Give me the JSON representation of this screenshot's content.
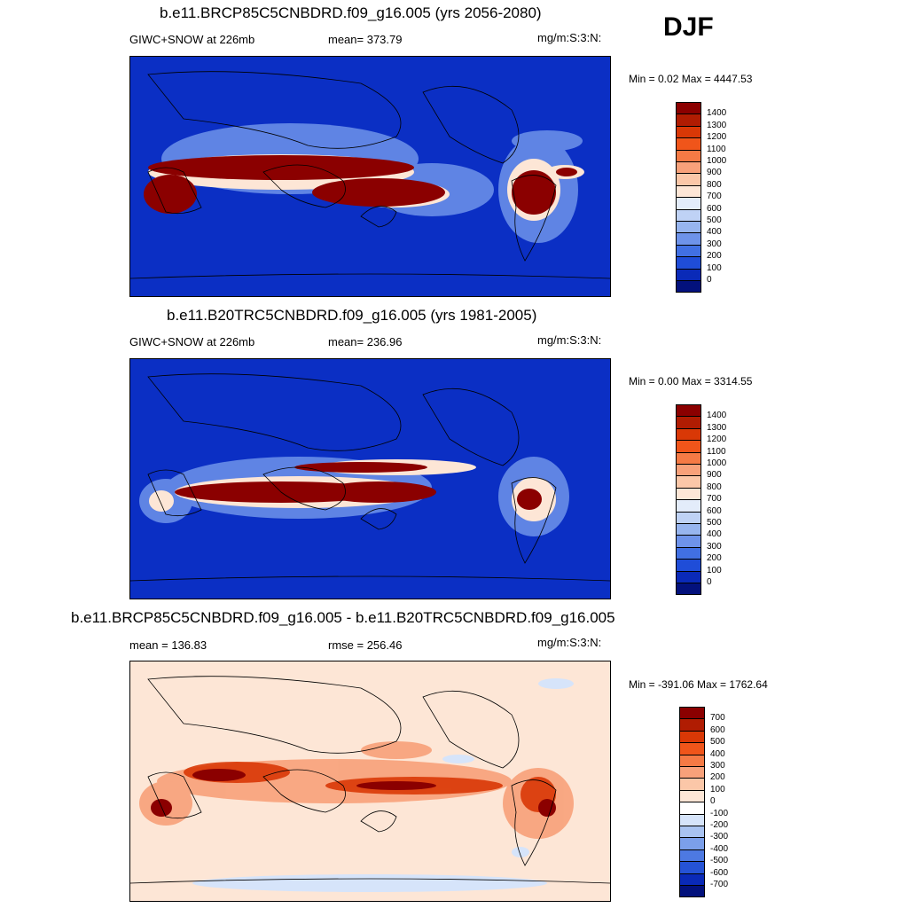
{
  "season": "DJF",
  "panels": [
    {
      "title": "b.e11.BRCP85C5CNBDRD.f09_g16.005 (yrs 2056-2080)",
      "left_label": "GIWC+SNOW at 226mb",
      "mid_label": "mean= 373.79",
      "right_label": "mg/m:S:3:N:",
      "minmax": "Min =   0.02 Max = 4447.53",
      "colorbar": {
        "labels": [
          "1400",
          "1300",
          "1200",
          "1100",
          "1000",
          "900",
          "800",
          "700",
          "600",
          "500",
          "400",
          "300",
          "200",
          "100",
          "0"
        ],
        "colors": [
          "#8b0000",
          "#b01c02",
          "#d93806",
          "#f0551a",
          "#f57a45",
          "#f8a17a",
          "#fbc7a8",
          "#fde6d6",
          "#e3ecfa",
          "#bfd2f5",
          "#97b5ef",
          "#6e93ea",
          "#4170e3",
          "#1f4dd8",
          "#0a2ab8",
          "#03117c"
        ]
      },
      "background": "#0b2fc4"
    },
    {
      "title": "b.e11.B20TRC5CNBDRD.f09_g16.005 (yrs 1981-2005)",
      "left_label": "GIWC+SNOW at 226mb",
      "mid_label": "mean= 236.96",
      "right_label": "mg/m:S:3:N:",
      "minmax": "Min =   0.00 Max = 3314.55",
      "colorbar": {
        "labels": [
          "1400",
          "1300",
          "1200",
          "1100",
          "1000",
          "900",
          "800",
          "700",
          "600",
          "500",
          "400",
          "300",
          "200",
          "100",
          "0"
        ],
        "colors": [
          "#8b0000",
          "#b01c02",
          "#d93806",
          "#f0551a",
          "#f57a45",
          "#f8a17a",
          "#fbc7a8",
          "#fde6d6",
          "#e3ecfa",
          "#bfd2f5",
          "#97b5ef",
          "#6e93ea",
          "#4170e3",
          "#1f4dd8",
          "#0a2ab8",
          "#03117c"
        ]
      },
      "background": "#0b2fc4"
    },
    {
      "title": "b.e11.BRCP85C5CNBDRD.f09_g16.005 - b.e11.B20TRC5CNBDRD.f09_g16.005",
      "left_label": "mean = 136.83",
      "mid_label": "rmse = 256.46",
      "right_label": "mg/m:S:3:N:",
      "minmax": "Min = -391.06 Max = 1762.64",
      "colorbar": {
        "labels": [
          "700",
          "600",
          "500",
          "400",
          "300",
          "200",
          "100",
          "0",
          "-100",
          "-200",
          "-300",
          "-400",
          "-500",
          "-600",
          "-700"
        ],
        "colors": [
          "#8b0000",
          "#b01c02",
          "#d93806",
          "#f0551a",
          "#f57a45",
          "#f8a17a",
          "#fbc7a8",
          "#fde6d6",
          "#ffffff",
          "#d6e4fa",
          "#a9c3f1",
          "#7b9fea",
          "#4d79e2",
          "#2553d6",
          "#0a2ab8",
          "#03117c"
        ]
      },
      "background": "#fde6d6"
    }
  ]
}
